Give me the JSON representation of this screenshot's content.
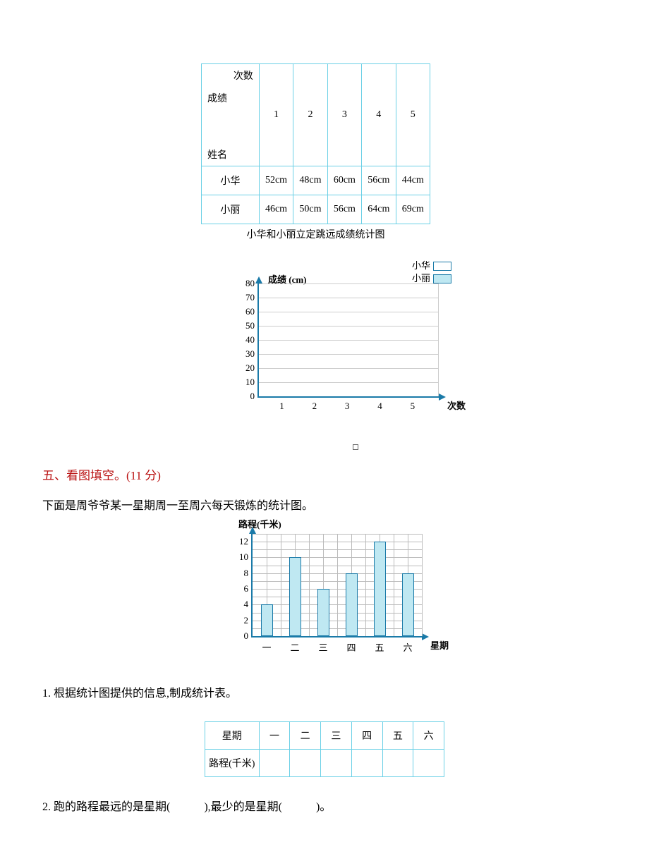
{
  "table1": {
    "header_times": "次数",
    "header_score": "成绩",
    "header_name": "姓名",
    "cols": [
      "1",
      "2",
      "3",
      "4",
      "5"
    ],
    "rows": [
      {
        "name": "小华",
        "vals": [
          "52cm",
          "48cm",
          "60cm",
          "56cm",
          "44cm"
        ]
      },
      {
        "name": "小丽",
        "vals": [
          "46cm",
          "50cm",
          "56cm",
          "64cm",
          "69cm"
        ]
      }
    ],
    "caption": "小华和小丽立定跳远成绩统计图",
    "border_color": "#6bd0e6"
  },
  "chart1": {
    "ylabel": "成绩 (cm)",
    "xlabel": "次数",
    "ylim": [
      0,
      80
    ],
    "ytick_step": 10,
    "yticks": [
      0,
      10,
      20,
      30,
      40,
      50,
      60,
      70,
      80
    ],
    "xticks": [
      "1",
      "2",
      "3",
      "4",
      "5"
    ],
    "axis_color": "#1a7aa8",
    "grid_color": "#cccccc",
    "legend": [
      {
        "label": "小华",
        "fill": "#ffffff",
        "border": "#1a7aa8"
      },
      {
        "label": "小丽",
        "fill": "#bfe8f2",
        "border": "#1a7aa8"
      }
    ]
  },
  "section5": {
    "heading": "五、看图填空。(11 分)",
    "heading_color": "#b91010",
    "intro": "下面是周爷爷某一星期周一至周六每天锻炼的统计图。"
  },
  "chart2": {
    "type": "bar",
    "ylabel": "路程(千米)",
    "xlabel": "星期",
    "ylim": [
      0,
      13
    ],
    "yticks": [
      0,
      2,
      4,
      6,
      8,
      10,
      12
    ],
    "categories": [
      "一",
      "二",
      "三",
      "四",
      "五",
      "六"
    ],
    "values": [
      4,
      10,
      6,
      8,
      12,
      8
    ],
    "bar_color": "#bfe8f2",
    "bar_border": "#1a7aa8",
    "axis_color": "#1a7aa8",
    "grid_color": "#bbbbbb"
  },
  "q1": {
    "text": "1. 根据统计图提供的信息,制成统计表。"
  },
  "table2": {
    "row1_label": "星期",
    "cols": [
      "一",
      "二",
      "三",
      "四",
      "五",
      "六"
    ],
    "row2_label": "路程(千米)",
    "border_color": "#6bd0e6"
  },
  "q2": {
    "prefix": "2. 跑的路程最远的是星期(",
    "mid": "),最少的是星期(",
    "suffix": ")。"
  }
}
